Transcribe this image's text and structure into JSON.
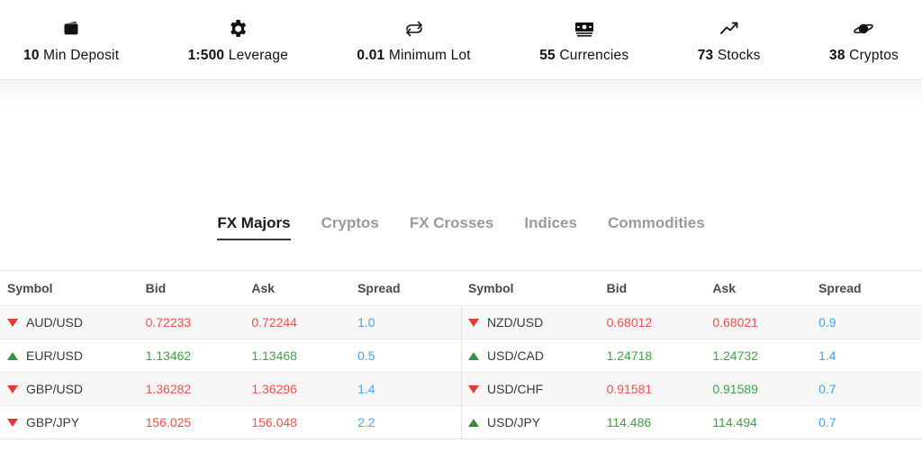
{
  "topbar": {
    "items": [
      {
        "icon": "wallet-icon",
        "value": "10",
        "label": "Min Deposit"
      },
      {
        "icon": "gear-icon",
        "value": "1:500",
        "label": "Leverage"
      },
      {
        "icon": "swap-arrows-icon",
        "value": "0.01",
        "label": "Minimum Lot"
      },
      {
        "icon": "banknote-icon",
        "value": "55",
        "label": "Currencies"
      },
      {
        "icon": "trend-up-icon",
        "value": "73",
        "label": "Stocks"
      },
      {
        "icon": "saturn-icon",
        "value": "38",
        "label": "Cryptos"
      }
    ]
  },
  "tabs": [
    {
      "label": "FX Majors",
      "active": true
    },
    {
      "label": "Cryptos",
      "active": false
    },
    {
      "label": "FX Crosses",
      "active": false
    },
    {
      "label": "Indices",
      "active": false
    },
    {
      "label": "Commodities",
      "active": false
    }
  ],
  "table": {
    "headers": [
      "Symbol",
      "Bid",
      "Ask",
      "Spread"
    ],
    "left_rows": [
      {
        "symbol": "AUD/USD",
        "direction": "down",
        "bid": "0.72233",
        "bid_color": "red",
        "ask": "0.72244",
        "ask_color": "red",
        "spread": "1.0"
      },
      {
        "symbol": "EUR/USD",
        "direction": "up",
        "bid": "1.13462",
        "bid_color": "green",
        "ask": "1.13468",
        "ask_color": "green",
        "spread": "0.5"
      },
      {
        "symbol": "GBP/USD",
        "direction": "down",
        "bid": "1.36282",
        "bid_color": "red",
        "ask": "1.36296",
        "ask_color": "red",
        "spread": "1.4"
      },
      {
        "symbol": "GBP/JPY",
        "direction": "down",
        "bid": "156.025",
        "bid_color": "red",
        "ask": "156.048",
        "ask_color": "red",
        "spread": "2.2"
      }
    ],
    "right_rows": [
      {
        "symbol": "NZD/USD",
        "direction": "down",
        "bid": "0.68012",
        "bid_color": "red",
        "ask": "0.68021",
        "ask_color": "red",
        "spread": "0.9"
      },
      {
        "symbol": "USD/CAD",
        "direction": "up",
        "bid": "1.24718",
        "bid_color": "green",
        "ask": "1.24732",
        "ask_color": "green",
        "spread": "1.4"
      },
      {
        "symbol": "USD/CHF",
        "direction": "down",
        "bid": "0.91581",
        "bid_color": "red",
        "ask": "0.91589",
        "ask_color": "green",
        "spread": "0.7"
      },
      {
        "symbol": "USD/JPY",
        "direction": "up",
        "bid": "114.486",
        "bid_color": "green",
        "ask": "114.494",
        "ask_color": "green",
        "spread": "0.7"
      }
    ]
  },
  "colors": {
    "red": "#ef5350",
    "green": "#43a047",
    "blue": "#42a5f5",
    "tri_red": "#e53935",
    "tri_green": "#388e3c"
  }
}
